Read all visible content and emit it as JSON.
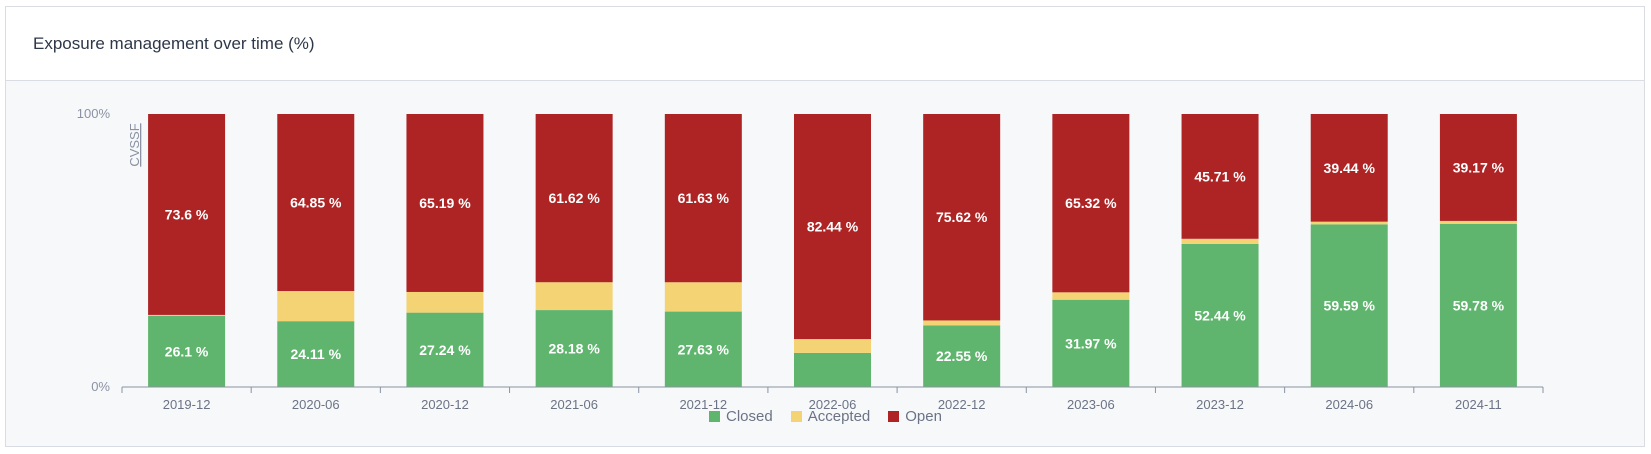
{
  "card": {
    "title": "Exposure management over time (%)"
  },
  "chart_data": {
    "type": "bar",
    "stacked": true,
    "categories": [
      "2019-12",
      "2020-06",
      "2020-12",
      "2021-06",
      "2021-12",
      "2022-06",
      "2022-12",
      "2023-06",
      "2023-12",
      "2024-06",
      "2024-11"
    ],
    "series": [
      {
        "name": "Closed",
        "color": "#60b56e",
        "values": [
          26.1,
          24.11,
          27.24,
          28.18,
          27.63,
          12.5,
          22.55,
          31.97,
          52.44,
          59.59,
          59.78
        ]
      },
      {
        "name": "Accepted",
        "color": "#f3d374",
        "values": [
          0.3,
          11.04,
          7.57,
          10.2,
          10.74,
          5.06,
          1.83,
          2.71,
          1.85,
          0.97,
          1.05
        ]
      },
      {
        "name": "Open",
        "color": "#ae2424",
        "values": [
          73.6,
          64.85,
          65.19,
          61.62,
          61.63,
          82.44,
          75.62,
          65.32,
          45.71,
          39.44,
          39.17
        ]
      }
    ],
    "data_labels": {
      "Closed": [
        "26.1 %",
        "24.11 %",
        "27.24 %",
        "28.18 %",
        "27.63 %",
        "",
        "22.55 %",
        "31.97 %",
        "52.44 %",
        "59.59 %",
        "59.78 %"
      ],
      "Open": [
        "73.6 %",
        "64.85 %",
        "65.19 %",
        "61.62 %",
        "61.63 %",
        "82.44 %",
        "75.62 %",
        "65.32 %",
        "45.71 %",
        "39.44 %",
        "39.17 %"
      ]
    },
    "ylim": [
      0,
      100
    ],
    "yticks": [
      "0%",
      "100%"
    ],
    "ylabel": "CVSSF",
    "legend_position": "bottom-center",
    "grid": false
  }
}
